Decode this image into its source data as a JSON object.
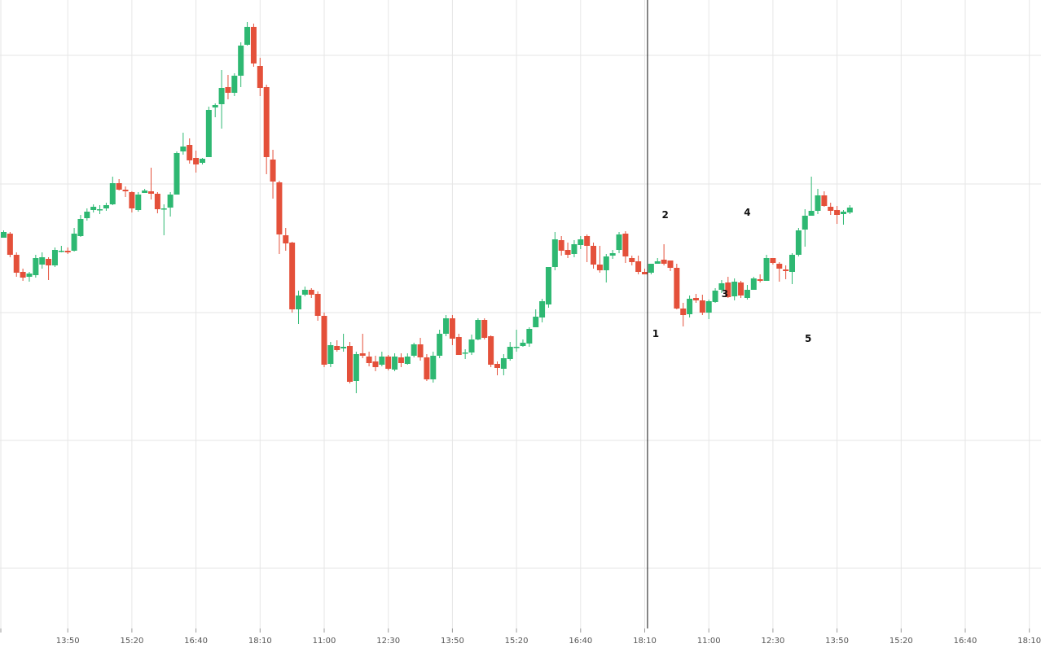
{
  "chart_data": {
    "type": "candlestick",
    "title": "",
    "xlabel": "",
    "ylabel": "",
    "colors": {
      "up": "#2eb872",
      "down": "#e4503a",
      "grid": "#e6e6e6",
      "axis_text": "#555555",
      "divider": "#111111"
    },
    "grid": true,
    "ylim": [
      0,
      796
    ],
    "x_ticks": [
      {
        "index": 10,
        "label": "13:50"
      },
      {
        "index": 20,
        "label": "15:20"
      },
      {
        "index": 30,
        "label": "16:40"
      },
      {
        "index": 40,
        "label": "18:10"
      },
      {
        "index": 50,
        "label": "11:00"
      },
      {
        "index": 60,
        "label": "12:30"
      },
      {
        "index": 70,
        "label": "13:50"
      },
      {
        "index": 80,
        "label": "15:20"
      },
      {
        "index": 90,
        "label": "16:40"
      },
      {
        "index": 100,
        "label": "18:10"
      },
      {
        "index": 110,
        "label": "11:00"
      },
      {
        "index": 120,
        "label": "12:30"
      },
      {
        "index": 130,
        "label": "13:50"
      },
      {
        "index": 140,
        "label": "15:20"
      },
      {
        "index": 150,
        "label": "16:40"
      },
      {
        "index": 160,
        "label": "18:10"
      }
    ],
    "divider_index": 100.5,
    "annotations": [
      {
        "label": "1",
        "index": 101.7,
        "price": 414
      },
      {
        "label": "2",
        "index": 103.2,
        "price": 268
      },
      {
        "label": "3",
        "index": 112.5,
        "price": 365
      },
      {
        "label": "4",
        "index": 116.0,
        "price": 265
      },
      {
        "label": "5",
        "index": 125.5,
        "price": 420
      }
    ],
    "candles": [
      [
        292,
        285,
        292,
        283
      ],
      [
        287,
        313,
        316,
        285
      ],
      [
        313,
        335,
        340,
        310
      ],
      [
        334,
        341,
        345,
        330
      ],
      [
        340,
        336,
        346,
        334
      ],
      [
        338,
        317,
        341,
        313
      ],
      [
        325,
        316,
        330,
        310
      ],
      [
        318,
        326,
        344,
        316
      ],
      [
        326,
        307,
        328,
        304
      ],
      [
        308,
        308,
        310,
        302
      ],
      [
        308,
        310,
        312,
        304
      ],
      [
        308,
        287,
        309,
        280
      ],
      [
        290,
        269,
        291,
        264
      ],
      [
        268,
        260,
        271,
        256
      ],
      [
        258,
        254,
        261,
        251
      ],
      [
        257,
        257,
        263,
        252
      ],
      [
        256,
        252,
        259,
        249
      ],
      [
        251,
        225,
        252,
        217
      ],
      [
        225,
        233,
        234,
        220
      ],
      [
        233,
        235,
        242,
        229
      ],
      [
        236,
        256,
        261,
        235
      ],
      [
        258,
        239,
        260,
        236
      ],
      [
        237,
        234,
        237,
        232
      ],
      [
        235,
        238,
        245,
        206
      ],
      [
        238,
        257,
        262,
        236
      ],
      [
        257,
        256,
        289,
        251
      ],
      [
        255,
        239,
        266,
        236
      ],
      [
        239,
        188,
        239,
        186
      ],
      [
        186,
        180,
        190,
        163
      ],
      [
        178,
        197,
        201,
        170
      ],
      [
        194,
        202,
        212,
        185
      ],
      [
        200,
        195,
        202,
        194
      ],
      [
        193,
        135,
        193,
        131
      ],
      [
        132,
        129,
        144,
        127
      ],
      [
        128,
        108,
        158,
        86
      ],
      [
        107,
        114,
        122,
        92
      ],
      [
        114,
        93,
        118,
        90
      ],
      [
        93,
        56,
        107,
        52
      ],
      [
        55,
        33,
        56,
        27
      ],
      [
        33,
        78,
        82,
        29
      ],
      [
        81,
        108,
        118,
        71
      ],
      [
        107,
        193,
        214,
        104
      ],
      [
        196,
        223,
        244,
        184
      ],
      [
        224,
        288,
        312,
        222
      ],
      [
        289,
        299,
        308,
        280
      ],
      [
        298,
        380,
        384,
        297
      ],
      [
        380,
        363,
        398,
        357
      ],
      [
        362,
        356,
        364,
        352
      ],
      [
        356,
        362,
        366,
        354
      ],
      [
        361,
        388,
        394,
        358
      ],
      [
        388,
        448,
        451,
        384
      ],
      [
        447,
        424,
        451,
        420
      ],
      [
        425,
        430,
        432,
        418
      ],
      [
        428,
        426,
        432,
        410
      ],
      [
        425,
        469,
        471,
        420
      ],
      [
        468,
        435,
        483,
        432
      ],
      [
        434,
        437,
        440,
        410
      ],
      [
        438,
        446,
        450,
        432
      ],
      [
        444,
        451,
        456,
        437
      ],
      [
        448,
        438,
        450,
        432
      ],
      [
        438,
        453,
        455,
        436
      ],
      [
        454,
        438,
        456,
        434
      ],
      [
        439,
        446,
        451,
        434
      ],
      [
        447,
        438,
        448,
        434
      ],
      [
        437,
        423,
        439,
        421
      ],
      [
        423,
        439,
        443,
        415
      ],
      [
        439,
        466,
        468,
        435
      ],
      [
        466,
        437,
        470,
        432
      ],
      [
        437,
        410,
        440,
        405
      ],
      [
        410,
        391,
        413,
        387
      ],
      [
        391,
        416,
        424,
        387
      ],
      [
        414,
        436,
        436,
        410
      ],
      [
        434,
        433,
        441,
        429
      ],
      [
        433,
        417,
        436,
        411
      ],
      [
        417,
        393,
        418,
        391
      ],
      [
        393,
        415,
        417,
        391
      ],
      [
        413,
        448,
        451,
        412
      ],
      [
        447,
        452,
        461,
        444
      ],
      [
        453,
        440,
        461,
        435
      ],
      [
        441,
        426,
        443,
        420
      ],
      [
        426,
        426,
        432,
        405
      ],
      [
        425,
        421,
        426,
        417
      ],
      [
        422,
        404,
        426,
        402
      ],
      [
        402,
        389,
        402,
        380
      ],
      [
        390,
        370,
        396,
        367
      ]
    ],
    "candles_part2": [
      [
        374,
        328,
        378,
        328
      ],
      [
        328,
        294,
        332,
        285
      ],
      [
        295,
        308,
        314,
        290
      ],
      [
        307,
        313,
        317,
        298
      ],
      [
        312,
        300,
        316,
        295
      ],
      [
        301,
        294,
        306,
        290
      ],
      [
        290,
        302,
        322,
        288
      ],
      [
        302,
        325,
        330,
        298
      ],
      [
        325,
        332,
        335,
        302
      ],
      [
        332,
        315,
        347,
        312
      ],
      [
        314,
        311,
        318,
        307
      ],
      [
        307,
        288,
        311,
        285
      ],
      [
        287,
        315,
        323,
        284
      ],
      [
        317,
        322,
        326,
        314
      ],
      [
        321,
        334,
        337,
        314
      ],
      [
        334,
        337,
        337,
        330
      ],
      [
        335,
        324,
        337,
        325
      ],
      [
        324,
        321,
        323,
        317
      ],
      [
        319,
        324,
        326,
        300
      ],
      [
        320,
        329,
        333,
        321
      ],
      [
        329,
        379,
        380,
        324
      ],
      [
        379,
        387,
        401,
        372
      ],
      [
        386,
        367,
        390,
        363
      ],
      [
        366,
        369,
        372,
        361
      ],
      [
        369,
        384,
        387,
        362
      ],
      [
        384,
        370,
        392,
        368
      ],
      [
        371,
        357,
        372,
        354
      ],
      [
        356,
        348,
        360,
        344
      ],
      [
        347,
        365,
        366,
        340
      ],
      [
        364,
        346,
        369,
        342
      ],
      [
        347,
        363,
        366,
        345
      ],
      [
        366,
        356,
        368,
        350
      ],
      [
        356,
        342,
        349,
        340
      ],
      [
        343,
        345,
        347,
        337
      ],
      [
        345,
        317,
        345,
        313
      ],
      [
        317,
        323,
        325,
        318
      ],
      [
        324,
        330,
        346,
        322
      ],
      [
        331,
        333,
        343,
        326
      ],
      [
        334,
        313,
        349,
        311
      ],
      [
        313,
        283,
        315,
        280
      ],
      [
        282,
        265,
        303,
        257
      ],
      [
        265,
        259,
        262,
        217
      ],
      [
        259,
        240,
        263,
        232
      ],
      [
        240,
        253,
        254,
        235
      ],
      [
        254,
        259,
        264,
        249
      ],
      [
        258,
        264,
        275,
        253
      ],
      [
        263,
        260,
        276,
        258
      ],
      [
        261,
        255,
        263,
        252
      ]
    ]
  }
}
